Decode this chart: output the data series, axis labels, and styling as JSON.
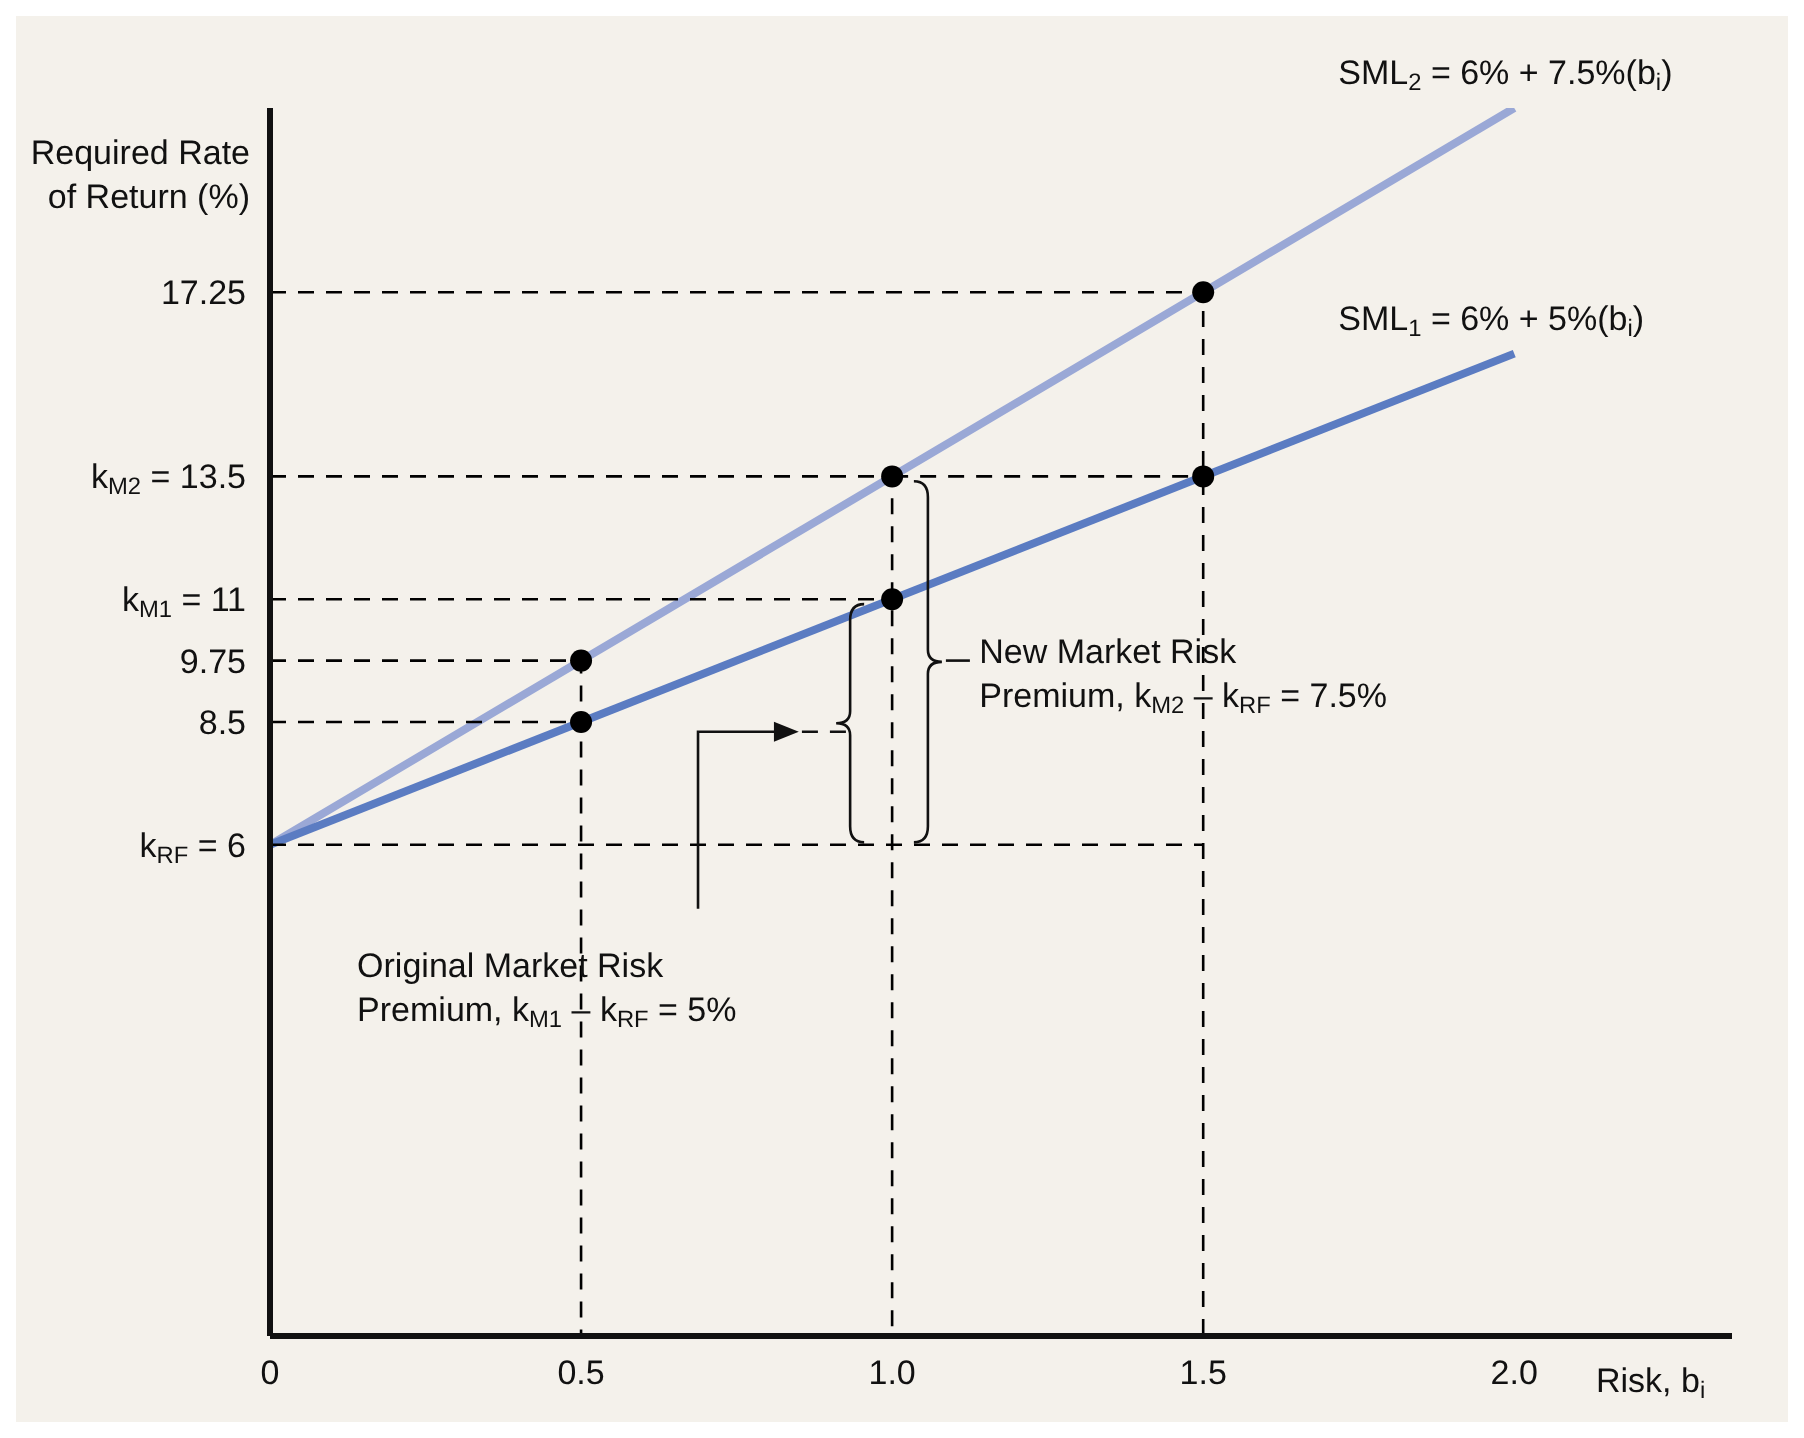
{
  "chart_data": {
    "type": "line",
    "xlabel": "Risk, b$_{i}$",
    "ylabel": "Required Rate\nof Return (%)",
    "xlim": [
      0,
      2.35
    ],
    "xticks": [
      0,
      0.5,
      {
        "value": 1,
        "label": "1.0"
      },
      1.5,
      {
        "value": 2,
        "label": "2.0"
      }
    ],
    "ylim": [
      -4,
      21
    ],
    "yticks": [
      {
        "value": 6,
        "label": "k$_{RF}$ = 6"
      },
      8.5,
      9.75,
      {
        "value": 11,
        "label": "k$_{M1}$ = 11"
      },
      {
        "value": 13.5,
        "label": "k$_{M2}$ = 13.5"
      },
      17.25
    ],
    "series": [
      {
        "name": "SML$_{2}$ = 6% + 7.5%(b$_{i}$)",
        "color": "#9aa8d6",
        "x": [
          0,
          2
        ],
        "values": [
          6,
          21
        ]
      },
      {
        "name": "SML$_{1}$ = 6% + 5%(b$_{i}$)",
        "color": "#5b7cc2",
        "x": [
          0,
          2
        ],
        "values": [
          6,
          16
        ]
      },
      {
        "color": "#000000",
        "line_style": "dashed",
        "x": [
          0,
          1.5,
          1.5
        ],
        "values": [
          17.25,
          17.25,
          -4
        ]
      },
      {
        "color": "#000000",
        "line_style": "dashed",
        "x": [
          0,
          1,
          1
        ],
        "values": [
          13.5,
          13.5,
          -4
        ]
      },
      {
        "color": "#000000",
        "line_style": "dashed",
        "x": [
          1,
          1.5
        ],
        "values": [
          13.5,
          13.5
        ]
      },
      {
        "color": "#000000",
        "line_style": "dashed",
        "x": [
          0,
          1
        ],
        "values": [
          11,
          11
        ]
      },
      {
        "color": "#000000",
        "line_style": "dashed",
        "x": [
          0,
          0.5,
          0.5
        ],
        "values": [
          9.75,
          9.75,
          -4
        ]
      },
      {
        "color": "#000000",
        "line_style": "dashed",
        "x": [
          0,
          0.5
        ],
        "values": [
          8.5,
          8.5
        ]
      },
      {
        "color": "#000000",
        "line_style": "dashed",
        "x": [
          0,
          1.5
        ],
        "values": [
          6,
          6
        ]
      },
      {
        "type": "scatter",
        "color": "#000000",
        "marker": "circle",
        "x": [
          0.5,
          1,
          1.5,
          0.5,
          1,
          1.5
        ],
        "values": [
          8.5,
          11,
          13.5,
          9.75,
          13.5,
          17.25
        ]
      }
    ],
    "annotations": [
      "New Market Risk\nPremium, k$_{M2}$ – k$_{RF}$ = 7.5%",
      "Original Market Risk\nPremium, k$_{M1}$ – k$_{RF}$ = 5%"
    ]
  }
}
